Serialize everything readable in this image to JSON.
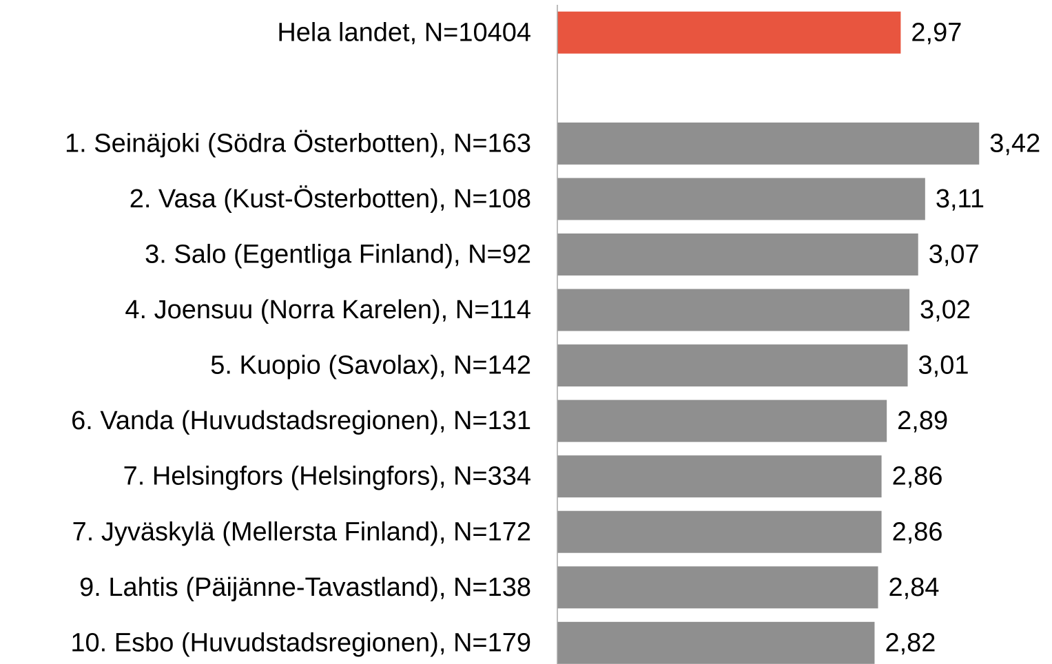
{
  "chart_data": {
    "type": "barh",
    "categories": [
      "Hela landet, N=10404",
      null,
      "1. Seinäjoki (Södra Österbotten), N=163",
      "2. Vasa (Kust-Österbotten), N=108",
      "3. Salo (Egentliga Finland), N=92",
      "4. Joensuu (Norra Karelen), N=114",
      "5. Kuopio (Savolax), N=142",
      "6. Vanda (Huvudstadsregionen), N=131",
      "7. Helsingfors (Helsingfors), N=334",
      "7. Jyväskylä (Mellersta Finland), N=172",
      "9. Lahtis (Päijänne-Tavastland), N=138",
      "10. Esbo (Huvudstadsregionen), N=179"
    ],
    "values": [
      2.97,
      null,
      3.42,
      3.11,
      3.07,
      3.02,
      3.01,
      2.89,
      2.86,
      2.86,
      2.84,
      2.82
    ],
    "value_labels": [
      "2,97",
      null,
      "3,42",
      "3,11",
      "3,07",
      "3,02",
      "3,01",
      "2,89",
      "2,86",
      "2,86",
      "2,84",
      "2,82"
    ],
    "colors": [
      "#e8553f",
      null,
      "#8f8f8f",
      "#8f8f8f",
      "#8f8f8f",
      "#8f8f8f",
      "#8f8f8f",
      "#8f8f8f",
      "#8f8f8f",
      "#8f8f8f",
      "#8f8f8f",
      "#8f8f8f"
    ],
    "xlim": [
      1,
      3.5
    ]
  }
}
